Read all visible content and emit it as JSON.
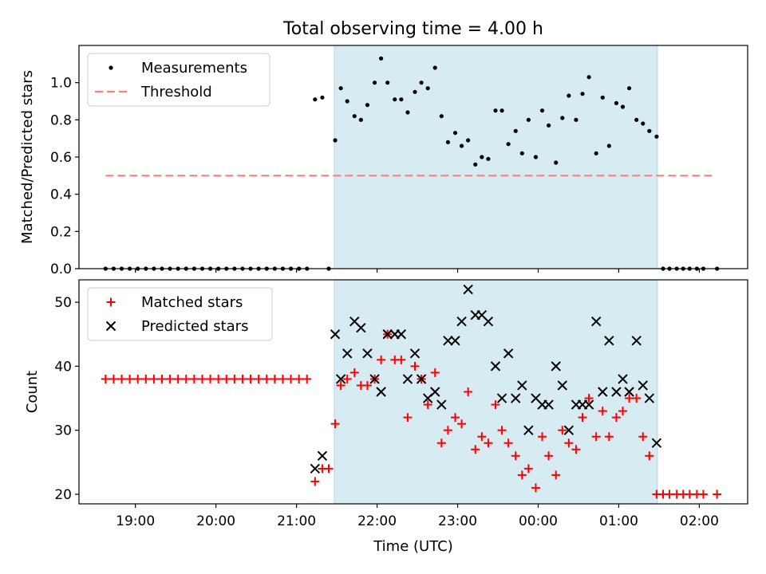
{
  "figure": {
    "title": "Total observing time = 4.00 h",
    "xlabel": "Time (UTC)",
    "x_tick_labels": [
      "19:00",
      "20:00",
      "21:00",
      "22:00",
      "23:00",
      "00:00",
      "01:00",
      "02:00"
    ],
    "x_range_hours": [
      18.3,
      26.6
    ],
    "shaded_interval_hours": [
      21.47,
      25.48
    ]
  },
  "chart_data": [
    {
      "type": "scatter",
      "ylabel": "Matched/Predicted stars",
      "ylim": [
        0,
        1.2
      ],
      "y_ticks": [
        "0.0",
        "0.2",
        "0.4",
        "0.6",
        "0.8",
        "1.0"
      ],
      "legend_position": "top-left",
      "series": [
        {
          "name": "Measurements",
          "color": "#000000",
          "marker": "dot",
          "x": [
            18.63,
            18.73,
            18.83,
            18.93,
            19.03,
            19.13,
            19.23,
            19.33,
            19.43,
            19.53,
            19.63,
            19.73,
            19.83,
            19.93,
            20.03,
            20.13,
            20.23,
            20.33,
            20.43,
            20.53,
            20.63,
            20.73,
            20.83,
            20.93,
            21.03,
            21.13,
            21.23,
            21.32,
            21.4,
            21.48,
            21.55,
            21.63,
            21.72,
            21.8,
            21.88,
            21.97,
            22.05,
            22.13,
            22.22,
            22.3,
            22.38,
            22.47,
            22.55,
            22.63,
            22.72,
            22.8,
            22.88,
            22.97,
            23.05,
            23.13,
            23.22,
            23.3,
            23.38,
            23.47,
            23.55,
            23.63,
            23.72,
            23.8,
            23.88,
            23.97,
            24.05,
            24.13,
            24.22,
            24.3,
            24.38,
            24.47,
            24.55,
            24.63,
            24.72,
            24.8,
            24.88,
            24.97,
            25.05,
            25.13,
            25.22,
            25.3,
            25.38,
            25.47,
            25.55,
            25.63,
            25.72,
            25.8,
            25.88,
            25.97,
            26.05,
            26.22
          ],
          "y": [
            0,
            0,
            0,
            0,
            0,
            0,
            0,
            0,
            0,
            0,
            0,
            0,
            0,
            0,
            0,
            0,
            0,
            0,
            0,
            0,
            0,
            0,
            0,
            0,
            0,
            0,
            0.91,
            0.92,
            0,
            0.69,
            0.97,
            0.9,
            0.82,
            0.8,
            0.88,
            1.0,
            1.13,
            1.0,
            0.91,
            0.91,
            0.84,
            0.95,
            1.0,
            0.97,
            1.08,
            0.82,
            0.68,
            0.73,
            0.66,
            0.69,
            0.56,
            0.6,
            0.59,
            0.85,
            0.85,
            0.67,
            0.74,
            0.62,
            0.8,
            0.6,
            0.85,
            0.77,
            0.57,
            0.81,
            0.93,
            0.8,
            0.94,
            1.03,
            0.62,
            0.92,
            0.66,
            0.89,
            0.87,
            0.97,
            0.8,
            0.78,
            0.74,
            0.71,
            0,
            0,
            0,
            0,
            0,
            0,
            0,
            0
          ]
        },
        {
          "name": "Threshold",
          "color": "#ff7f7f",
          "style": "dashed",
          "x": [
            18.63,
            26.17
          ],
          "y": [
            0.5,
            0.5
          ]
        }
      ]
    },
    {
      "type": "scatter",
      "ylabel": "Count",
      "ylim": [
        18.5,
        53.5
      ],
      "y_ticks": [
        "20",
        "30",
        "40",
        "50"
      ],
      "legend_position": "top-left",
      "series": [
        {
          "name": "Matched stars",
          "color": "#ff0000",
          "marker": "plus",
          "x": [
            18.63,
            18.73,
            18.83,
            18.93,
            19.03,
            19.13,
            19.23,
            19.33,
            19.43,
            19.53,
            19.63,
            19.73,
            19.83,
            19.93,
            20.03,
            20.13,
            20.23,
            20.33,
            20.43,
            20.53,
            20.63,
            20.73,
            20.83,
            20.93,
            21.03,
            21.13,
            21.23,
            21.32,
            21.4,
            21.48,
            21.55,
            21.63,
            21.72,
            21.8,
            21.88,
            21.97,
            22.05,
            22.13,
            22.22,
            22.3,
            22.38,
            22.47,
            22.55,
            22.63,
            22.72,
            22.8,
            22.88,
            22.97,
            23.05,
            23.13,
            23.22,
            23.3,
            23.38,
            23.47,
            23.55,
            23.63,
            23.72,
            23.8,
            23.88,
            23.97,
            24.05,
            24.13,
            24.22,
            24.3,
            24.38,
            24.47,
            24.55,
            24.63,
            24.72,
            24.8,
            24.88,
            24.97,
            25.05,
            25.13,
            25.22,
            25.3,
            25.38,
            25.47,
            25.55,
            25.63,
            25.72,
            25.8,
            25.88,
            25.97,
            26.05,
            26.22
          ],
          "y": [
            38,
            38,
            38,
            38,
            38,
            38,
            38,
            38,
            38,
            38,
            38,
            38,
            38,
            38,
            38,
            38,
            38,
            38,
            38,
            38,
            38,
            38,
            38,
            38,
            38,
            38,
            22,
            24,
            24,
            31,
            37,
            38,
            39,
            37,
            37,
            38,
            41,
            45,
            41,
            41,
            32,
            40,
            38,
            34,
            39,
            28,
            30,
            32,
            31,
            36,
            27,
            29,
            28,
            34,
            30,
            28,
            26,
            23,
            24,
            21,
            29,
            26,
            23,
            30,
            28,
            27,
            32,
            35,
            29,
            33,
            29,
            32,
            33,
            35,
            35,
            29,
            26,
            20,
            20,
            20,
            20,
            20,
            20,
            20,
            20,
            20
          ]
        },
        {
          "name": "Predicted stars",
          "color": "#000000",
          "marker": "x",
          "x": [
            21.23,
            21.32,
            21.48,
            21.55,
            21.63,
            21.72,
            21.8,
            21.88,
            21.97,
            22.05,
            22.13,
            22.22,
            22.3,
            22.38,
            22.47,
            22.55,
            22.63,
            22.72,
            22.8,
            22.88,
            22.97,
            23.05,
            23.13,
            23.22,
            23.3,
            23.38,
            23.47,
            23.55,
            23.63,
            23.72,
            23.8,
            23.88,
            23.97,
            24.05,
            24.13,
            24.22,
            24.3,
            24.38,
            24.47,
            24.55,
            24.63,
            24.72,
            24.8,
            24.88,
            24.97,
            25.05,
            25.13,
            25.22,
            25.3,
            25.38,
            25.47
          ],
          "y": [
            24,
            26,
            45,
            38,
            42,
            47,
            46,
            42,
            38,
            36,
            45,
            45,
            45,
            38,
            42,
            38,
            35,
            36,
            34,
            44,
            44,
            47,
            52,
            48,
            48,
            47,
            40,
            35,
            42,
            35,
            37,
            30,
            35,
            34,
            34,
            40,
            37,
            30,
            34,
            34,
            34,
            47,
            36,
            44,
            36,
            38,
            36,
            44,
            37,
            35,
            28
          ]
        }
      ]
    }
  ]
}
